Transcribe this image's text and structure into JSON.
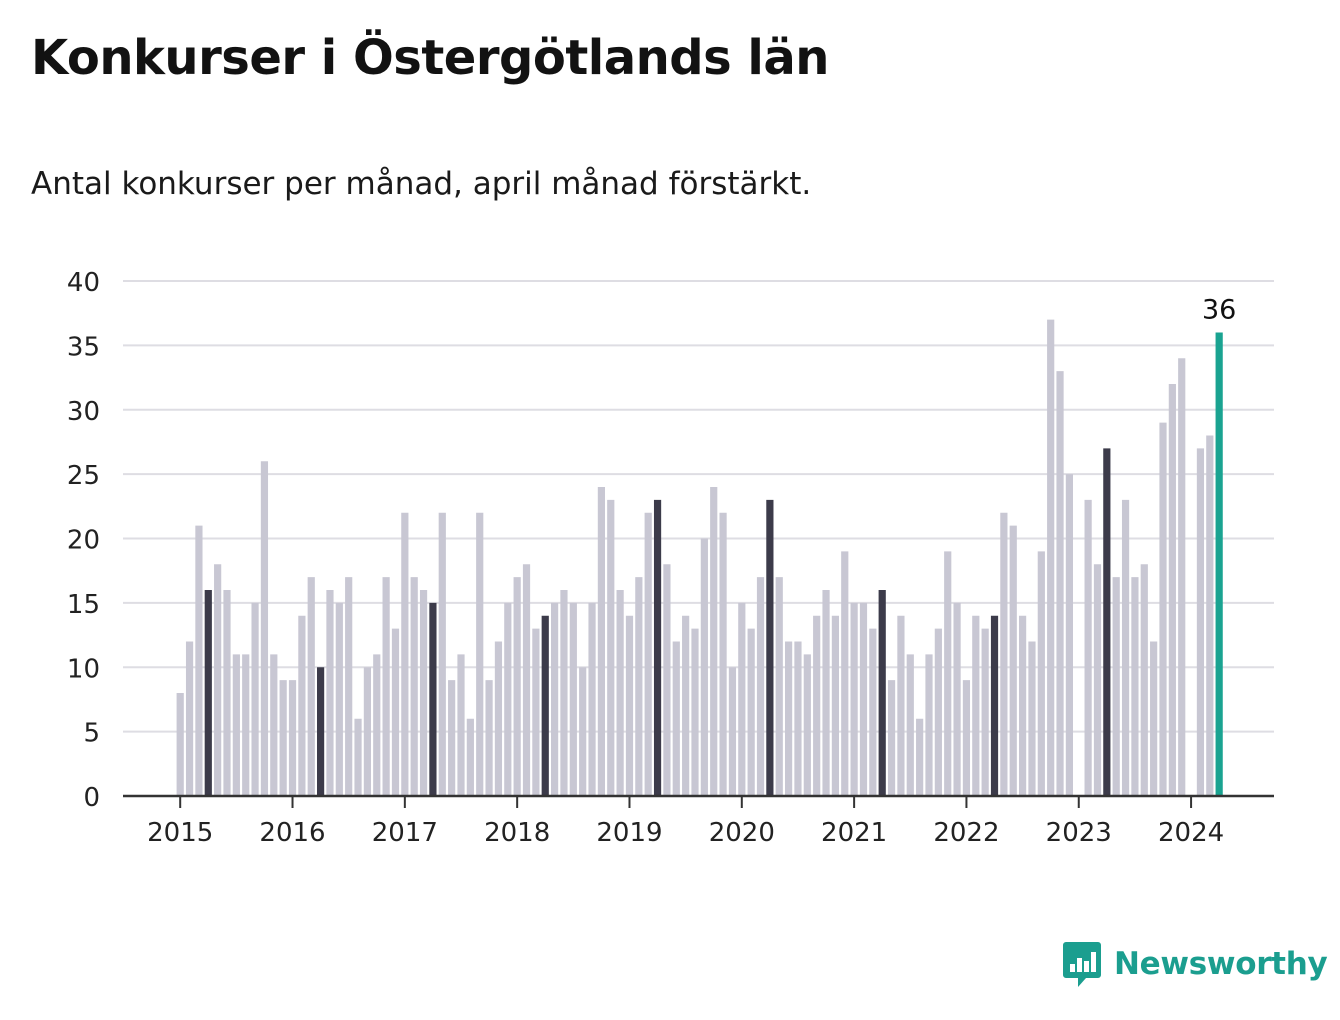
{
  "header": {
    "title": "Konkurser i Östergötlands län",
    "subtitle": "Antal konkurser per månad, april månad förstärkt."
  },
  "logo": {
    "text": "Newsworthy",
    "icon": "bar-chart-speech-bubble-icon",
    "color": "#1b9e8f"
  },
  "colors": {
    "normal": "#c8c7d3",
    "highlight": "#3c3b4a",
    "latest": "#1aa391",
    "grid": "#dedde3",
    "axis": "#333333"
  },
  "chart_data": {
    "type": "bar",
    "title": "Konkurser i Östergötlands län",
    "subtitle": "Antal konkurser per månad, april månad förstärkt.",
    "ylim": [
      0,
      40
    ],
    "yticks": [
      0,
      5,
      10,
      15,
      20,
      25,
      30,
      35,
      40
    ],
    "xticks": [
      "2015",
      "2016",
      "2017",
      "2018",
      "2019",
      "2020",
      "2021",
      "2022",
      "2023",
      "2024"
    ],
    "grid": true,
    "start": "2015-01",
    "highlight_month": "april",
    "latest_label": "36",
    "values": [
      8,
      12,
      21,
      16,
      18,
      16,
      11,
      11,
      15,
      26,
      11,
      9,
      9,
      14,
      17,
      10,
      16,
      15,
      17,
      6,
      10,
      11,
      17,
      13,
      22,
      17,
      16,
      15,
      22,
      9,
      11,
      6,
      22,
      9,
      12,
      15,
      17,
      18,
      13,
      14,
      15,
      16,
      15,
      10,
      15,
      24,
      23,
      16,
      14,
      17,
      22,
      23,
      18,
      12,
      14,
      13,
      20,
      24,
      22,
      10,
      15,
      13,
      17,
      23,
      17,
      12,
      12,
      11,
      14,
      16,
      14,
      19,
      15,
      15,
      13,
      16,
      9,
      14,
      11,
      6,
      11,
      13,
      19,
      15,
      9,
      14,
      13,
      14,
      22,
      21,
      14,
      12,
      19,
      37,
      33,
      25,
      0,
      23,
      18,
      27,
      17,
      23,
      17,
      18,
      12,
      29,
      32,
      34,
      0,
      27,
      28,
      36
    ]
  }
}
